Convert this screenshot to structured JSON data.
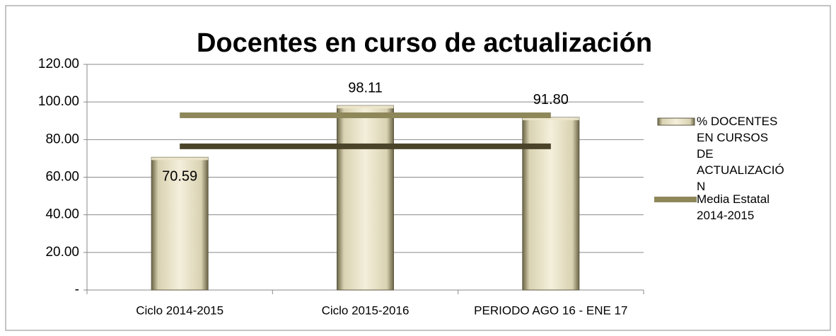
{
  "chart_data": {
    "type": "bar",
    "title": "Docentes en curso de actualización",
    "categories": [
      "Ciclo 2014-2015",
      "Ciclo 2015-2016",
      "PERIODO AGO 16 - ENE 17"
    ],
    "series": [
      {
        "name": "% DOCENTES EN CURSOS DE ACTUALIZACIÓN",
        "type": "bar",
        "color": "#ece6cc",
        "values": [
          70.59,
          98.11,
          91.8
        ],
        "value_labels": [
          "70.59",
          "98.11",
          "91.80"
        ]
      },
      {
        "name": "Media Estatal 2014-2015",
        "type": "line",
        "color": "#8e875a",
        "values": [
          92.9,
          92.9,
          92.9
        ]
      },
      {
        "type": "line",
        "color": "#4a4329",
        "values": [
          76.4,
          76.4,
          76.4
        ]
      }
    ],
    "ylim": [
      0,
      120
    ],
    "yticks": [
      {
        "value": 0,
        "label": "-"
      },
      {
        "value": 20,
        "label": "20.00"
      },
      {
        "value": 40,
        "label": "40.00"
      },
      {
        "value": 60,
        "label": "60.00"
      },
      {
        "value": 80,
        "label": "80.00"
      },
      {
        "value": 100,
        "label": "100.00"
      },
      {
        "value": 120,
        "label": "120.00"
      }
    ],
    "grid": true,
    "legend": "right"
  }
}
